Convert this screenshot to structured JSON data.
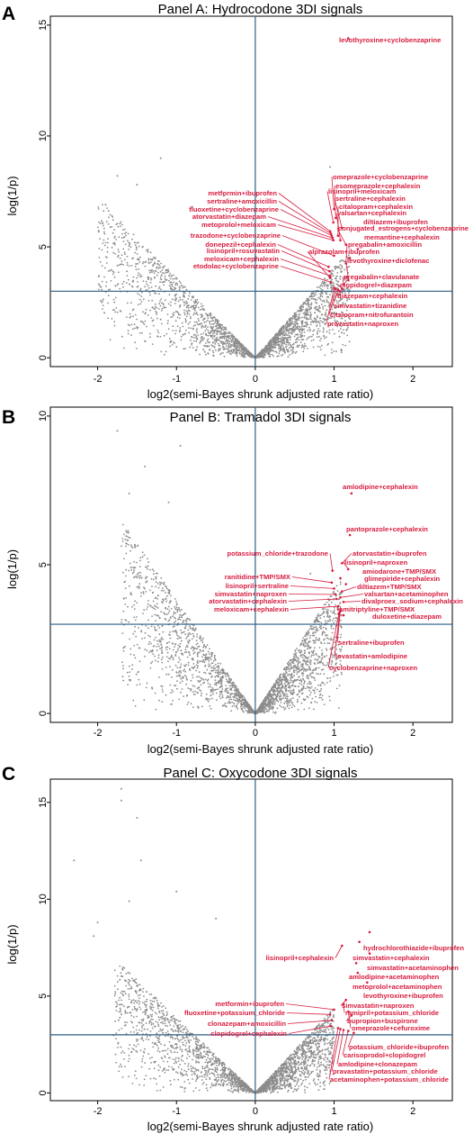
{
  "colors": {
    "point": "#8c8c8c",
    "highlight": "#d81c3f",
    "refline": "#2a5f86",
    "frame": "#000000"
  },
  "chart_data": [
    {
      "type": "scatter",
      "panel_letter": "A",
      "title": "Panel A: Hydrocodone 3DI signals",
      "xlabel": "log2(semi-Bayes shrunk adjusted rate ratio)",
      "ylabel": "log(1/p)",
      "xlim": [
        -2.6,
        2.5
      ],
      "ylim": [
        -0.4,
        15.4
      ],
      "xticks": [
        -2,
        -1,
        0,
        1,
        2
      ],
      "yticks": [
        0,
        5,
        10,
        15
      ],
      "reference_lines": {
        "x": 0,
        "y": 3
      },
      "grid": false,
      "background_points": {
        "description": "several thousand grey points forming a V shape",
        "left_arm": {
          "x_min": -2.0,
          "x_max": 0,
          "y_top_at_x_min": 7.2
        },
        "right_arm": {
          "x_min": 0,
          "x_max": 1.2,
          "y_top_at_x_max": 4.9
        },
        "outliers": [
          [
            -1.75,
            8.2
          ],
          [
            -1.2,
            9.0
          ],
          [
            -0.4,
            7.3
          ],
          [
            -0.8,
            6.8
          ],
          [
            0.95,
            8.6
          ],
          [
            -1.9,
            6.9
          ],
          [
            -1.5,
            7.8
          ]
        ]
      },
      "signals": [
        {
          "label": "levothyroxine+cyclobenzaprine",
          "x": 1.18,
          "y": 14.4
        },
        {
          "label": "omeprazole+cyclobenzaprine",
          "x": 1.0,
          "y": 6.7
        },
        {
          "label": "esomeprazole+cephalexin",
          "x": 1.02,
          "y": 6.3
        },
        {
          "label": "lisinopril+meloxicam",
          "x": 0.99,
          "y": 6.1
        },
        {
          "label": "sertraline+cephalexin",
          "x": 1.1,
          "y": 5.85
        },
        {
          "label": "citalopram+cephalexin",
          "x": 1.05,
          "y": 5.5
        },
        {
          "label": "valsartan+cephalexin",
          "x": 1.08,
          "y": 5.3
        },
        {
          "label": "diltiazem+ibuprofen",
          "x": 1.3,
          "y": 4.9
        },
        {
          "label": "conjugated_estrogens+cyclobenzaprine",
          "x": 1.15,
          "y": 5.1
        },
        {
          "label": "memantine+cephalexin",
          "x": 1.2,
          "y": 4.5
        },
        {
          "label": "pregabalin+amoxicillin",
          "x": 1.15,
          "y": 4.25
        },
        {
          "label": "alprazolam+ibuprofen",
          "x": 0.95,
          "y": 3.6
        },
        {
          "label": "levothyroxine+diclofenac",
          "x": 1.18,
          "y": 3.5
        },
        {
          "label": "pregabalin+clavulanate",
          "x": 1.12,
          "y": 3.3
        },
        {
          "label": "clopidogrel+diazepam",
          "x": 1.1,
          "y": 3.1
        },
        {
          "label": "diazepam+cephalexin",
          "x": 1.08,
          "y": 3.0
        },
        {
          "label": "simvastatin+tizanidine",
          "x": 1.05,
          "y": 3.05
        },
        {
          "label": "citalopram+nitrofurantoin",
          "x": 1.02,
          "y": 3.1
        },
        {
          "label": "pravastatin+naproxen",
          "x": 1.0,
          "y": 3.15
        },
        {
          "label": "metformin+ibuprofen",
          "x": 0.95,
          "y": 5.7
        },
        {
          "label": "sertraline+amoxicillin",
          "x": 0.96,
          "y": 5.6
        },
        {
          "label": "fluoxetine+cyclobenzaprine",
          "x": 0.97,
          "y": 5.5
        },
        {
          "label": "atorvastatin+diazepam",
          "x": 0.98,
          "y": 5.4
        },
        {
          "label": "metoprolol+meloxicam",
          "x": 0.99,
          "y": 5.3
        },
        {
          "label": "trazodone+cyclobenzaprine",
          "x": 1.0,
          "y": 4.6
        },
        {
          "label": "donepezil+cephalexin",
          "x": 0.93,
          "y": 4.1
        },
        {
          "label": "lisinopril+rosuvastatin",
          "x": 0.94,
          "y": 3.9
        },
        {
          "label": "meloxicam+cephalexin",
          "x": 0.95,
          "y": 3.7
        },
        {
          "label": "etodolac+cyclobenzaprine",
          "x": 0.96,
          "y": 3.4
        }
      ]
    },
    {
      "type": "scatter",
      "panel_letter": "B",
      "title": "Panel B: Tramadol 3DI signals",
      "xlabel": "log2(semi-Bayes shrunk adjusted rate ratio)",
      "ylabel": "log(1/p)",
      "xlim": [
        -2.6,
        2.5
      ],
      "ylim": [
        -0.3,
        10.3
      ],
      "xticks": [
        -2,
        -1,
        0,
        1,
        2
      ],
      "yticks": [
        0,
        5,
        10
      ],
      "reference_lines": {
        "x": 0,
        "y": 3
      },
      "grid": false,
      "background_points": {
        "description": "several thousand grey points forming a V shape",
        "left_arm": {
          "x_min": -1.7,
          "x_max": 0,
          "y_top_at_x_min": 6.5
        },
        "right_arm": {
          "x_min": 0,
          "x_max": 1.1,
          "y_top_at_x_max": 4.6
        },
        "outliers": [
          [
            -1.75,
            9.5
          ],
          [
            -0.95,
            9.0
          ],
          [
            -1.4,
            8.3
          ],
          [
            -1.6,
            7.4
          ],
          [
            -1.1,
            7.1
          ],
          [
            0.7,
            4.7
          ]
        ]
      },
      "signals": [
        {
          "label": "amlodipine+cephalexin",
          "x": 1.22,
          "y": 7.4
        },
        {
          "label": "pantoprazole+cephalexin",
          "x": 1.2,
          "y": 6.0
        },
        {
          "label": "potassium_chloride+trazodone",
          "x": 0.98,
          "y": 4.8
        },
        {
          "label": "atorvastatin+ibuprofen",
          "x": 1.1,
          "y": 5.05
        },
        {
          "label": "lisinopril+naproxen",
          "x": 1.18,
          "y": 4.85
        },
        {
          "label": "amiodarone+TMP/SMX",
          "x": 1.08,
          "y": 4.55
        },
        {
          "label": "glimepiride+cephalexin",
          "x": 1.15,
          "y": 4.35
        },
        {
          "label": "ranitidine+TMP/SMX",
          "x": 0.97,
          "y": 4.4
        },
        {
          "label": "lisinopril+sertraline",
          "x": 1.0,
          "y": 4.2
        },
        {
          "label": "diltiazem+TMP/SMX",
          "x": 1.1,
          "y": 4.1
        },
        {
          "label": "simvastatin+naproxen",
          "x": 1.02,
          "y": 4.0
        },
        {
          "label": "valsartan+acetaminophen",
          "x": 1.08,
          "y": 3.9
        },
        {
          "label": "atorvastatin+cephalexin",
          "x": 1.03,
          "y": 3.85
        },
        {
          "label": "divalproex_sodium+cephalexin",
          "x": 1.12,
          "y": 3.75
        },
        {
          "label": "meloxicam+cephalexin",
          "x": 1.05,
          "y": 3.6
        },
        {
          "label": "amitriptyline+TMP/SMX",
          "x": 1.05,
          "y": 3.5
        },
        {
          "label": "duloxetine+diazepam",
          "x": 1.12,
          "y": 3.3
        },
        {
          "label": "sertraline+ibuprofen",
          "x": 1.08,
          "y": 3.45
        },
        {
          "label": "lovastatin+amlodipine",
          "x": 1.07,
          "y": 3.4
        },
        {
          "label": "cyclobenzaprine+naproxen",
          "x": 1.06,
          "y": 3.35
        }
      ]
    },
    {
      "type": "scatter",
      "panel_letter": "C",
      "title": "Panel C: Oxycodone 3DI signals",
      "xlabel": "log2(semi-Bayes shrunk adjusted rate ratio)",
      "ylabel": "log(1/p)",
      "xlim": [
        -2.6,
        2.5
      ],
      "ylim": [
        -0.4,
        16.2
      ],
      "xticks": [
        -2,
        -1,
        0,
        1,
        2
      ],
      "yticks": [
        0,
        5,
        10,
        15
      ],
      "reference_lines": {
        "x": 0,
        "y": 3
      },
      "grid": false,
      "background_points": {
        "description": "several thousand grey points forming a V shape",
        "left_arm": {
          "x_min": -1.8,
          "x_max": 0,
          "y_top_at_x_min": 7.0
        },
        "right_arm": {
          "x_min": 0,
          "x_max": 1.0,
          "y_top_at_x_max": 4.4
        },
        "outliers": [
          [
            -1.7,
            15.7
          ],
          [
            -1.7,
            15.1
          ],
          [
            -1.5,
            14.2
          ],
          [
            -1.45,
            12.0
          ],
          [
            -2.3,
            12.0
          ],
          [
            -1.0,
            10.4
          ],
          [
            -1.6,
            9.9
          ],
          [
            -2.0,
            8.8
          ],
          [
            -2.05,
            8.1
          ],
          [
            -0.5,
            9.0
          ]
        ]
      },
      "signals": [
        {
          "label": "hydrochlorothiazide+ibuprofen",
          "x": 1.45,
          "y": 8.3
        },
        {
          "label": "simvastatin+cephalexin",
          "x": 1.32,
          "y": 7.8
        },
        {
          "label": "lisinopril+cephalexin",
          "x": 1.1,
          "y": 7.6
        },
        {
          "label": "simvastatin+acetaminophen",
          "x": 1.45,
          "y": 7.2
        },
        {
          "label": "amlodipine+acetaminophen",
          "x": 1.28,
          "y": 6.7
        },
        {
          "label": "metoprolol+acetaminophen",
          "x": 1.3,
          "y": 6.2
        },
        {
          "label": "levothyroxine+ibuprofen",
          "x": 1.42,
          "y": 5.7
        },
        {
          "label": "simvastatin+naproxen",
          "x": 1.15,
          "y": 4.8
        },
        {
          "label": "ramipril+potassium_chloride",
          "x": 1.12,
          "y": 4.6
        },
        {
          "label": "omeprazole+cefuroxime",
          "x": 1.18,
          "y": 4.2
        },
        {
          "label": "bupropion+buspirone",
          "x": 1.22,
          "y": 4.0
        },
        {
          "label": "metformin+ibuprofen",
          "x": 1.0,
          "y": 4.3
        },
        {
          "label": "fluoxetine+potassium_chloride",
          "x": 0.95,
          "y": 4.05
        },
        {
          "label": "clonazepam+amoxicillin",
          "x": 0.97,
          "y": 3.75
        },
        {
          "label": "clopidogrel+cephalexin",
          "x": 0.96,
          "y": 3.45
        },
        {
          "label": "potassium_chloride+ibuprofen",
          "x": 1.25,
          "y": 3.1
        },
        {
          "label": "carisoprodol+clopidogrel",
          "x": 1.18,
          "y": 3.2
        },
        {
          "label": "amlodipine+clonazepam",
          "x": 1.12,
          "y": 3.25
        },
        {
          "label": "pravastatin+potassium_chloride",
          "x": 1.08,
          "y": 3.3
        },
        {
          "label": "acetaminophen+potassium_chloride",
          "x": 1.05,
          "y": 3.35
        }
      ]
    }
  ]
}
